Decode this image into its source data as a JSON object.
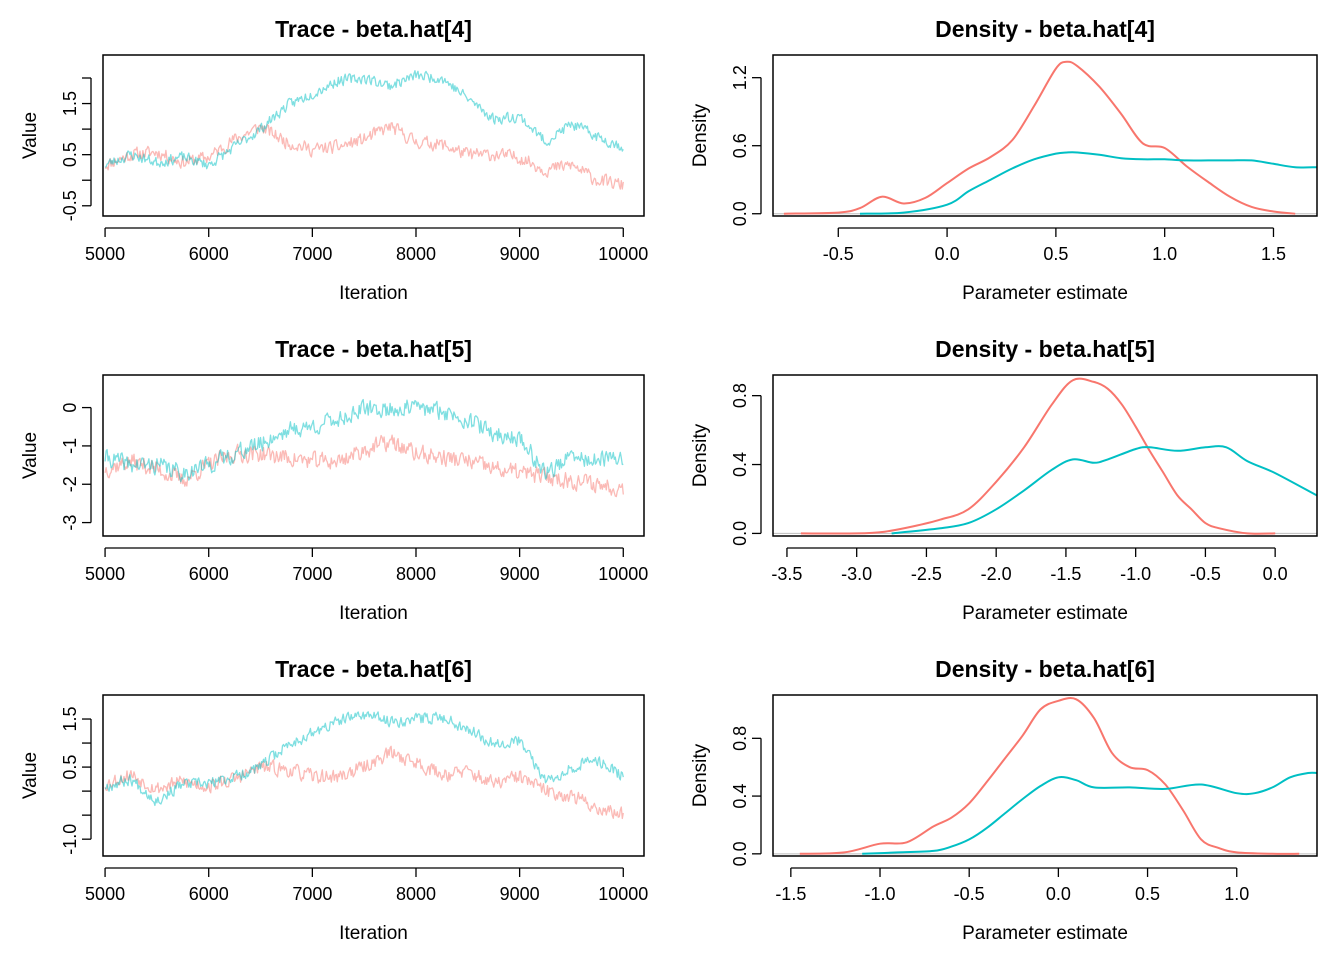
{
  "colors": {
    "chain1": "#F8766D",
    "chain2": "#00BFC4",
    "chain1_trace": "#F8766D",
    "chain2_trace": "#00BFC4",
    "zero_line": "#BEBEBE"
  },
  "chart_data": [
    {
      "type": "line",
      "panel": "trace",
      "title": "Trace - beta.hat[4]",
      "xlabel": "Iteration",
      "ylabel": "Value",
      "xlim": [
        4980,
        10200
      ],
      "ylim": [
        -0.7,
        2.45
      ],
      "xticks": [
        "5000",
        "6000",
        "7000",
        "8000",
        "9000",
        "10000"
      ],
      "yticks": [
        "-0.5",
        "0.5",
        "1.5"
      ],
      "minor_yticks": [
        0,
        1,
        2
      ],
      "series": [
        {
          "x": [
            5000,
            5250,
            5500,
            5750,
            6000,
            6250,
            6500,
            6750,
            7000,
            7250,
            7500,
            7750,
            8000,
            8250,
            8500,
            8750,
            9000,
            9250,
            9500,
            9750,
            10000
          ],
          "values": [
            0.3,
            0.5,
            0.55,
            0.35,
            0.45,
            0.8,
            1.05,
            0.75,
            0.6,
            0.65,
            0.8,
            1.05,
            0.75,
            0.7,
            0.5,
            0.5,
            0.45,
            0.2,
            0.3,
            0.0,
            -0.1
          ],
          "amp": 0.17,
          "seed": 11
        },
        {
          "x": [
            5000,
            5250,
            5500,
            5750,
            6000,
            6250,
            6500,
            6750,
            7000,
            7250,
            7500,
            7750,
            8000,
            8250,
            8500,
            8750,
            9000,
            9250,
            9500,
            9750,
            10000
          ],
          "values": [
            0.3,
            0.5,
            0.35,
            0.45,
            0.3,
            0.65,
            1.0,
            1.45,
            1.7,
            1.95,
            2.0,
            1.85,
            2.05,
            2.0,
            1.6,
            1.2,
            1.25,
            0.75,
            1.1,
            0.85,
            0.65
          ],
          "amp": 0.14,
          "seed": 23
        }
      ]
    },
    {
      "type": "line",
      "panel": "density",
      "title": "Density - beta.hat[4]",
      "xlabel": "Parameter estimate",
      "ylabel": "Density",
      "xlim": [
        -0.8,
        1.7
      ],
      "ylim": [
        -0.02,
        1.4
      ],
      "xticks": [
        "-0.5",
        "0.0",
        "0.5",
        "1.0",
        "1.5"
      ],
      "yticks": [
        "0.0",
        "0.6",
        "1.2"
      ],
      "series": [
        {
          "x": [
            -0.75,
            -0.5,
            -0.4,
            -0.3,
            -0.2,
            -0.1,
            0,
            0.1,
            0.2,
            0.3,
            0.4,
            0.5,
            0.55,
            0.6,
            0.7,
            0.8,
            0.9,
            1.0,
            1.1,
            1.2,
            1.3,
            1.4,
            1.5,
            1.6
          ],
          "values": [
            0,
            0.01,
            0.05,
            0.15,
            0.09,
            0.14,
            0.27,
            0.4,
            0.5,
            0.65,
            0.95,
            1.28,
            1.34,
            1.3,
            1.12,
            0.88,
            0.62,
            0.58,
            0.42,
            0.28,
            0.15,
            0.06,
            0.02,
            0.0
          ]
        },
        {
          "x": [
            -0.4,
            -0.2,
            0,
            0.1,
            0.2,
            0.3,
            0.4,
            0.5,
            0.55,
            0.6,
            0.7,
            0.8,
            0.9,
            1.0,
            1.1,
            1.2,
            1.3,
            1.4,
            1.5,
            1.6,
            1.7
          ],
          "values": [
            0,
            0.01,
            0.08,
            0.2,
            0.3,
            0.4,
            0.48,
            0.53,
            0.54,
            0.54,
            0.52,
            0.49,
            0.48,
            0.48,
            0.47,
            0.47,
            0.47,
            0.47,
            0.44,
            0.41,
            0.41
          ]
        }
      ]
    },
    {
      "type": "line",
      "panel": "trace",
      "title": "Trace - beta.hat[5]",
      "xlabel": "Iteration",
      "ylabel": "Value",
      "xlim": [
        4980,
        10200
      ],
      "ylim": [
        -3.35,
        0.85
      ],
      "xticks": [
        "5000",
        "6000",
        "7000",
        "8000",
        "9000",
        "10000"
      ],
      "yticks": [
        "-3",
        "-2",
        "-1",
        "0"
      ],
      "minor_yticks": [],
      "series": [
        {
          "x": [
            5000,
            5250,
            5500,
            5750,
            6000,
            6250,
            6500,
            6750,
            7000,
            7250,
            7500,
            7750,
            8000,
            8250,
            8500,
            8750,
            9000,
            9250,
            9500,
            9750,
            10000
          ],
          "values": [
            -1.6,
            -1.4,
            -1.6,
            -1.9,
            -1.5,
            -1.2,
            -1.2,
            -1.3,
            -1.4,
            -1.4,
            -1.1,
            -0.9,
            -1.2,
            -1.3,
            -1.4,
            -1.6,
            -1.7,
            -1.8,
            -1.9,
            -2.0,
            -2.1
          ],
          "amp": 0.3,
          "seed": 37
        },
        {
          "x": [
            5000,
            5250,
            5500,
            5750,
            6000,
            6250,
            6500,
            6750,
            7000,
            7250,
            7500,
            7750,
            8000,
            8250,
            8500,
            8750,
            9000,
            9250,
            9500,
            9750,
            10000
          ],
          "values": [
            -1.3,
            -1.5,
            -1.5,
            -1.7,
            -1.5,
            -1.2,
            -0.95,
            -0.6,
            -0.5,
            -0.3,
            -0.05,
            -0.05,
            0.0,
            -0.1,
            -0.3,
            -0.7,
            -0.8,
            -1.7,
            -1.3,
            -1.4,
            -1.3
          ],
          "amp": 0.3,
          "seed": 41
        }
      ]
    },
    {
      "type": "line",
      "panel": "density",
      "title": "Density - beta.hat[5]",
      "xlabel": "Parameter estimate",
      "ylabel": "Density",
      "xlim": [
        -3.6,
        0.3
      ],
      "ylim": [
        -0.015,
        0.92
      ],
      "xticks": [
        "-3.5",
        "-3.0",
        "-2.5",
        "-2.0",
        "-1.5",
        "-1.0",
        "-0.5",
        "0.0"
      ],
      "yticks": [
        "0.0",
        "0.4",
        "0.8"
      ],
      "series": [
        {
          "x": [
            -3.4,
            -3.0,
            -2.8,
            -2.6,
            -2.4,
            -2.2,
            -2.0,
            -1.8,
            -1.6,
            -1.45,
            -1.3,
            -1.2,
            -1.1,
            -1.0,
            -0.9,
            -0.8,
            -0.7,
            -0.6,
            -0.5,
            -0.4,
            -0.2,
            0.0
          ],
          "values": [
            0,
            0.0,
            0.01,
            0.04,
            0.08,
            0.14,
            0.3,
            0.5,
            0.75,
            0.89,
            0.88,
            0.84,
            0.75,
            0.62,
            0.48,
            0.35,
            0.22,
            0.14,
            0.06,
            0.03,
            0.0,
            0.0
          ]
        },
        {
          "x": [
            -2.75,
            -2.4,
            -2.2,
            -2.0,
            -1.8,
            -1.6,
            -1.45,
            -1.3,
            -1.2,
            -1.0,
            -0.9,
            -0.7,
            -0.5,
            -0.35,
            -0.2,
            0.0,
            0.3
          ],
          "values": [
            0,
            0.03,
            0.06,
            0.14,
            0.25,
            0.37,
            0.43,
            0.41,
            0.43,
            0.49,
            0.5,
            0.48,
            0.5,
            0.5,
            0.42,
            0.35,
            0.22
          ]
        }
      ]
    },
    {
      "type": "line",
      "panel": "trace",
      "title": "Trace - beta.hat[6]",
      "xlabel": "Iteration",
      "ylabel": "Value",
      "xlim": [
        4980,
        10200
      ],
      "ylim": [
        -1.35,
        2.0
      ],
      "xticks": [
        "5000",
        "6000",
        "7000",
        "8000",
        "9000",
        "10000"
      ],
      "yticks": [
        "-1.0",
        "0.5",
        "1.5"
      ],
      "minor_yticks": [
        -0.5,
        0,
        1
      ],
      "series": [
        {
          "x": [
            5000,
            5250,
            5500,
            5750,
            6000,
            6250,
            6500,
            6750,
            7000,
            7250,
            7500,
            7750,
            8000,
            8250,
            8500,
            8750,
            9000,
            9250,
            9500,
            9750,
            10000
          ],
          "values": [
            0.15,
            0.35,
            0.05,
            0.2,
            0.1,
            0.25,
            0.5,
            0.45,
            0.3,
            0.3,
            0.5,
            0.8,
            0.6,
            0.35,
            0.4,
            0.15,
            0.3,
            0.0,
            -0.1,
            -0.35,
            -0.5
          ],
          "amp": 0.2,
          "seed": 53
        },
        {
          "x": [
            5000,
            5250,
            5500,
            5750,
            6000,
            6250,
            6500,
            6750,
            7000,
            7250,
            7500,
            7750,
            8000,
            8250,
            8500,
            8750,
            9000,
            9250,
            9500,
            9750,
            10000
          ],
          "values": [
            0.1,
            0.25,
            -0.2,
            0.15,
            0.15,
            0.3,
            0.5,
            0.95,
            1.2,
            1.45,
            1.6,
            1.45,
            1.5,
            1.55,
            1.3,
            1.0,
            1.05,
            0.2,
            0.5,
            0.65,
            0.3
          ],
          "amp": 0.16,
          "seed": 67
        }
      ]
    },
    {
      "type": "line",
      "panel": "density",
      "title": "Density - beta.hat[6]",
      "xlabel": "Parameter estimate",
      "ylabel": "Density",
      "xlim": [
        -1.6,
        1.45
      ],
      "ylim": [
        -0.015,
        1.1
      ],
      "xticks": [
        "-1.5",
        "-1.0",
        "-0.5",
        "0.0",
        "0.5",
        "1.0"
      ],
      "yticks": [
        "0.0",
        "0.4",
        "0.8"
      ],
      "series": [
        {
          "x": [
            -1.45,
            -1.2,
            -1.0,
            -0.85,
            -0.7,
            -0.6,
            -0.5,
            -0.4,
            -0.3,
            -0.2,
            -0.1,
            0.0,
            0.1,
            0.2,
            0.3,
            0.4,
            0.5,
            0.6,
            0.7,
            0.8,
            0.9,
            1.0,
            1.2,
            1.35
          ],
          "values": [
            0,
            0.01,
            0.07,
            0.08,
            0.19,
            0.25,
            0.35,
            0.5,
            0.66,
            0.82,
            1.0,
            1.06,
            1.07,
            0.94,
            0.7,
            0.6,
            0.58,
            0.48,
            0.3,
            0.1,
            0.04,
            0.01,
            0.0,
            0.0
          ]
        },
        {
          "x": [
            -1.1,
            -0.9,
            -0.7,
            -0.6,
            -0.5,
            -0.4,
            -0.3,
            -0.2,
            -0.1,
            0.0,
            0.1,
            0.2,
            0.4,
            0.6,
            0.8,
            1.0,
            1.1,
            1.2,
            1.3,
            1.4,
            1.45
          ],
          "values": [
            0,
            0.01,
            0.02,
            0.05,
            0.1,
            0.18,
            0.28,
            0.38,
            0.47,
            0.53,
            0.51,
            0.46,
            0.46,
            0.45,
            0.48,
            0.42,
            0.42,
            0.46,
            0.53,
            0.56,
            0.56
          ]
        }
      ]
    }
  ]
}
